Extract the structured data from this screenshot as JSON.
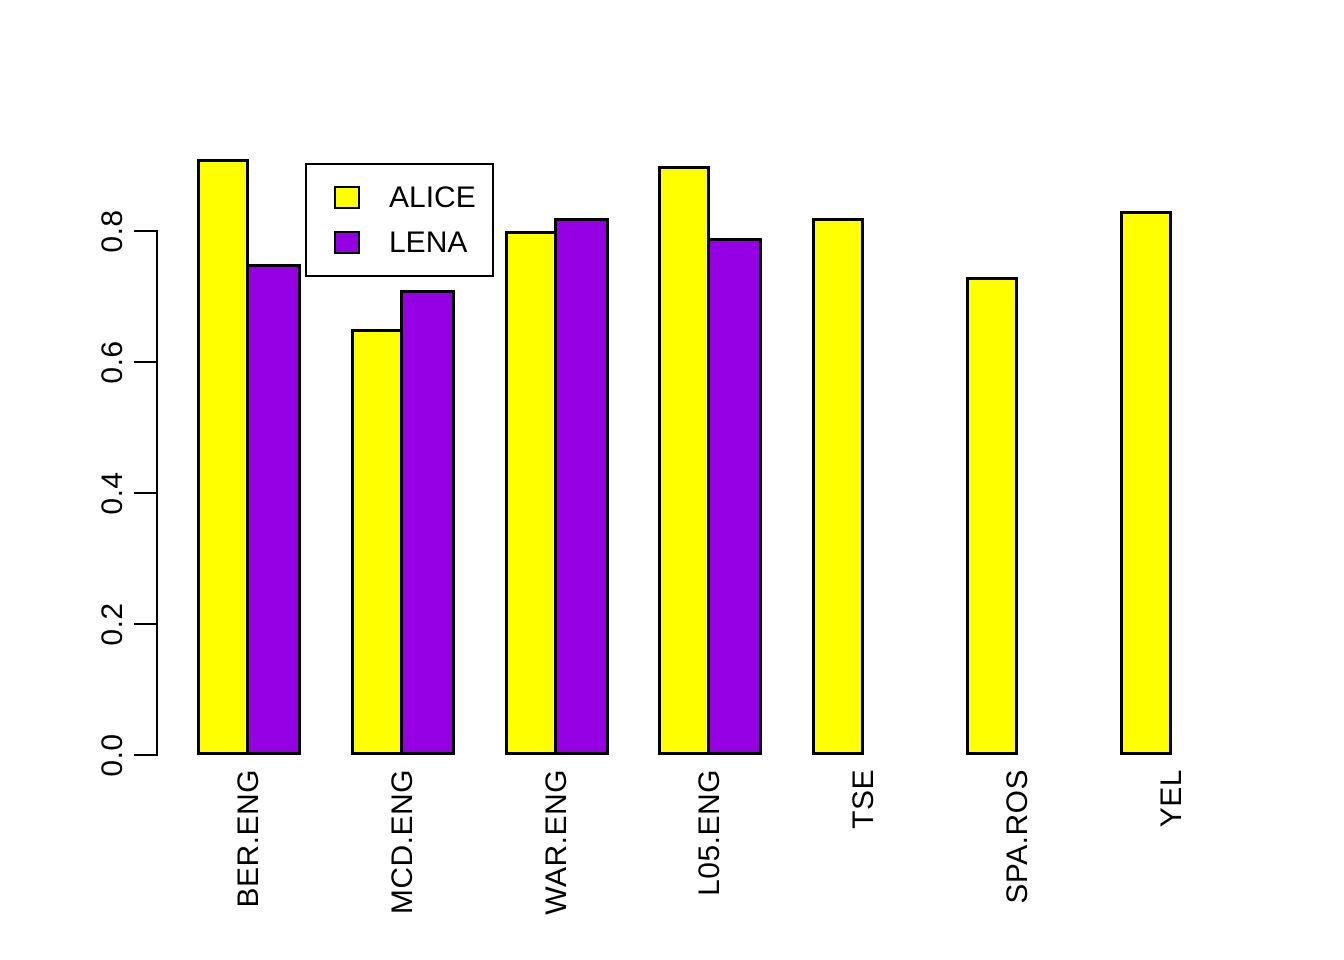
{
  "figure": {
    "background": "#FFFFFF",
    "axis_color": "#000000",
    "bar_border_color": "#000000"
  },
  "chart_data": {
    "type": "bar",
    "orientation": "vertical",
    "title": "",
    "xlabel": "",
    "ylabel": "",
    "grid": false,
    "categories": [
      "BER.ENG",
      "MCD.ENG",
      "WAR.ENG",
      "L05.ENG",
      "TSE",
      "SPA.ROS",
      "YEL"
    ],
    "series": [
      {
        "name": "ALICE",
        "color": "#FFFF00",
        "values": [
          0.91,
          0.65,
          0.8,
          0.9,
          0.82,
          0.73,
          0.83
        ]
      },
      {
        "name": "LENA",
        "color": "#9400E3",
        "values": [
          0.75,
          0.71,
          0.82,
          0.79,
          null,
          null,
          null
        ]
      }
    ],
    "ytick_values": [
      0.0,
      0.2,
      0.4,
      0.6,
      0.8
    ],
    "ytick_labels": [
      "0.0",
      "0.2",
      "0.4",
      "0.6",
      "0.8"
    ],
    "ylim": [
      0,
      0.92
    ],
    "legend": {
      "position": "upper-left-inset",
      "border": true,
      "entries": [
        "ALICE",
        "LENA"
      ]
    }
  }
}
